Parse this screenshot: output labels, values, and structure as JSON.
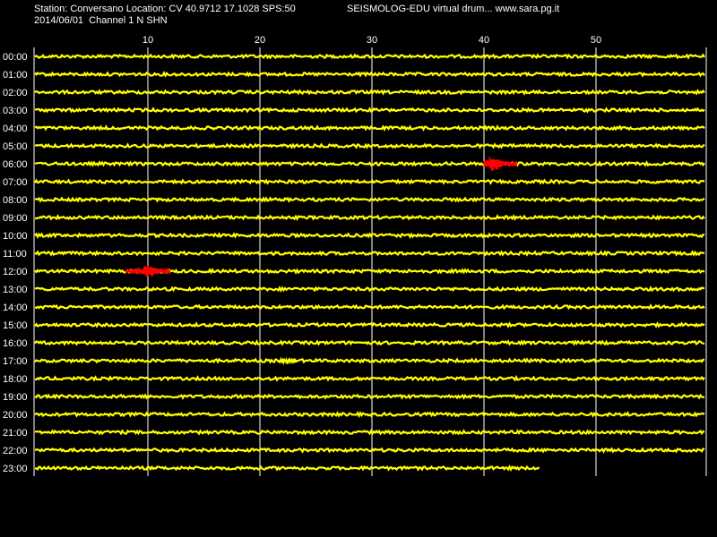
{
  "header": {
    "station_line": "Station: Conversano Location: CV 40.9712 17.1028 SPS:50",
    "date_line": "2014/06/01  Channel 1 N SHN",
    "right_line": "SEISMOLOG-EDU virtual drum... www.sara.pg.it"
  },
  "colors": {
    "background": "#000000",
    "trace": "#ffff00",
    "event": "#ff0000",
    "grid": "#ffffff",
    "text": "#ffffff"
  },
  "chart_data": {
    "type": "line",
    "title": "",
    "xlabel": "",
    "ylabel": "",
    "x_unit": "minutes",
    "xlim": [
      0,
      60
    ],
    "x_ticks": [
      10,
      20,
      30,
      40,
      50
    ],
    "grid": true,
    "hour_rows": [
      "00:00",
      "01:00",
      "02:00",
      "03:00",
      "04:00",
      "05:00",
      "06:00",
      "07:00",
      "08:00",
      "09:00",
      "10:00",
      "11:00",
      "12:00",
      "13:00",
      "14:00",
      "15:00",
      "16:00",
      "17:00",
      "18:00",
      "19:00",
      "20:00",
      "21:00",
      "22:00",
      "23:00"
    ],
    "last_row_end_minute": 45,
    "events": [
      {
        "hour": "06:00",
        "start_minute": 40,
        "end_minute": 43,
        "peak_minute": 40.6,
        "color": "#ff0000"
      },
      {
        "hour": "12:00",
        "start_minute": 8,
        "end_minute": 12,
        "peak_minute": 9.9,
        "color": "#ff0000"
      }
    ],
    "minor_bursts": [
      {
        "hour": "17:00",
        "minute": 22.5
      }
    ]
  }
}
